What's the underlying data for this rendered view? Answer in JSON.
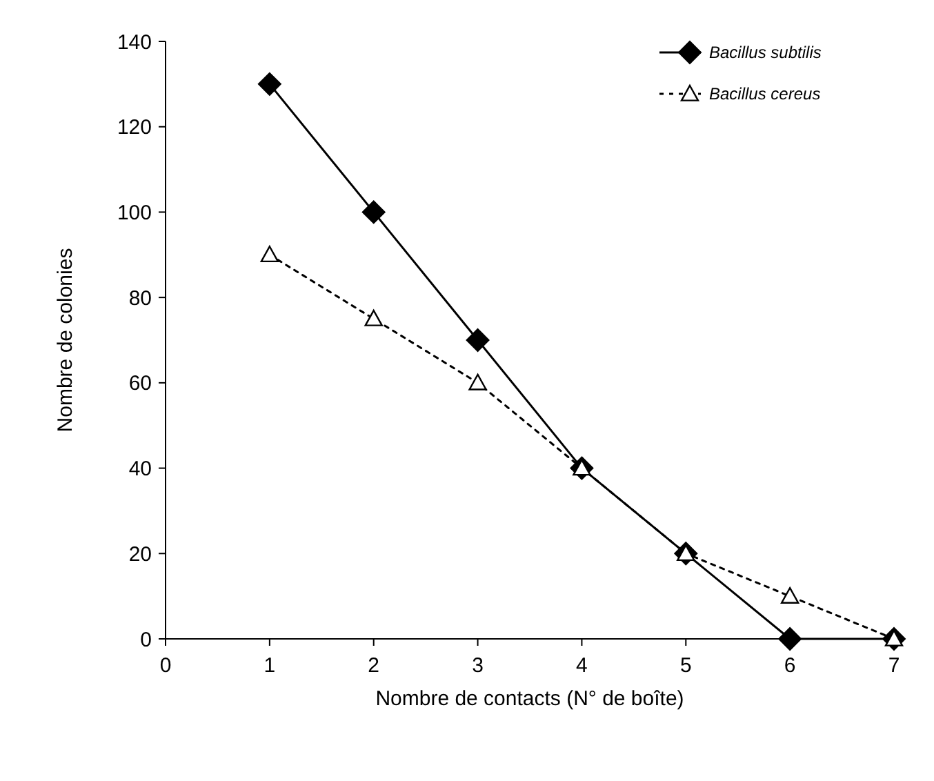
{
  "chart_data": {
    "type": "line",
    "xlabel": "Nombre de contacts (N° de boîte)",
    "ylabel": "Nombre de colonies",
    "x": [
      1,
      2,
      3,
      4,
      5,
      6,
      7
    ],
    "xlim": [
      0,
      7
    ],
    "xticks": [
      0,
      1,
      2,
      3,
      4,
      5,
      6,
      7
    ],
    "ylim": [
      0,
      140
    ],
    "yticks": [
      0,
      20,
      40,
      60,
      80,
      100,
      120,
      140
    ],
    "legend": "top right",
    "grid": false,
    "series": [
      {
        "name": "Bacillus subtilis",
        "color": "#000000",
        "marker": "diamond",
        "line_style": "solid",
        "values": [
          130,
          100,
          70,
          40,
          20,
          0,
          0
        ]
      },
      {
        "name": "Bacillus cereus",
        "color": "#000000",
        "marker": "triangle",
        "line_style": "dotted",
        "values": [
          90,
          75,
          60,
          40,
          20,
          10,
          0
        ]
      }
    ]
  }
}
